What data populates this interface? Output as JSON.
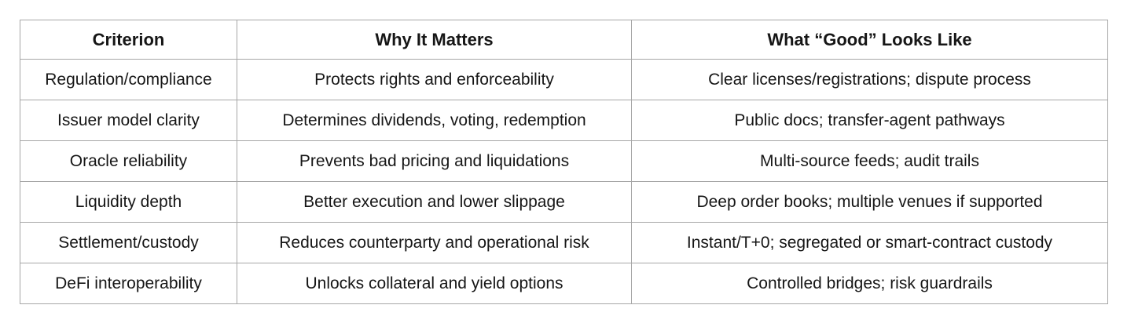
{
  "table": {
    "headers": {
      "criterion": "Criterion",
      "why": "Why It Matters",
      "good": "What “Good” Looks Like"
    },
    "rows": [
      {
        "criterion": "Regulation/compliance",
        "why": "Protects rights and enforceability",
        "good": "Clear licenses/registrations; dispute process"
      },
      {
        "criterion": "Issuer model clarity",
        "why": "Determines dividends, voting, redemption",
        "good": "Public docs; transfer-agent pathways"
      },
      {
        "criterion": "Oracle reliability",
        "why": "Prevents bad pricing and liquidations",
        "good": "Multi-source feeds; audit trails"
      },
      {
        "criterion": "Liquidity depth",
        "why": "Better execution and lower slippage",
        "good": "Deep order books; multiple venues if supported"
      },
      {
        "criterion": "Settlement/custody",
        "why": "Reduces counterparty and operational risk",
        "good": "Instant/T+0; segregated or smart-contract custody"
      },
      {
        "criterion": "DeFi interoperability",
        "why": "Unlocks collateral and yield options",
        "good": "Controlled bridges; risk guardrails"
      }
    ],
    "colors": {
      "border": "#a6a6a6",
      "text": "#161616",
      "background": "#ffffff"
    }
  }
}
